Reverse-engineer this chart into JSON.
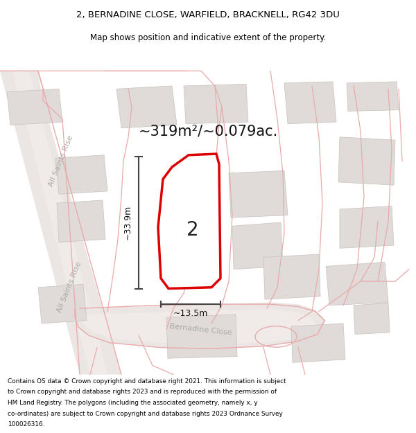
{
  "title_line1": "2, BERNADINE CLOSE, WARFIELD, BRACKNELL, RG42 3DU",
  "title_line2": "Map shows position and indicative extent of the property.",
  "footer_text": "Contains OS data © Crown copyright and database right 2021. This information is subject to Crown copyright and database rights 2023 and is reproduced with the permission of HM Land Registry. The polygons (including the associated geometry, namely x, y co-ordinates) are subject to Crown copyright and database rights 2023 Ordnance Survey 100026316.",
  "area_label": "~319m²/~0.079ac.",
  "width_label": "~13.5m",
  "height_label": "~33.9m",
  "plot_number": "2",
  "map_bg": "#f5f0ee",
  "plot_fill": "#ffffff",
  "plot_stroke": "#dd0000",
  "road_line_color": "#e8aaaa",
  "building_fill": "#e0dbd8",
  "building_edge": "#c8c2bf",
  "street_text_color": "#aaaaaa",
  "dim_line_color": "#444444",
  "street_label_rise": "All Saints Rise",
  "street_label_bernadine": "Bernadine Close"
}
